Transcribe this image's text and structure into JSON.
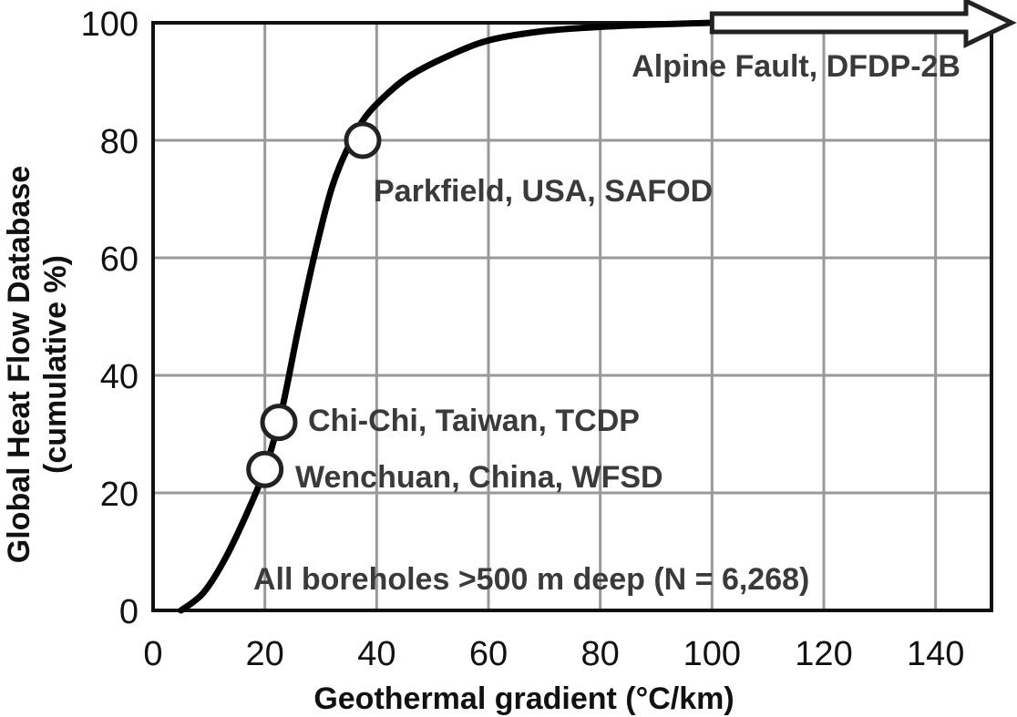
{
  "chart_data": {
    "type": "line",
    "title": "",
    "xlabel": "Geothermal gradient (°C/km)",
    "ylabel_line1": "Global Heat Flow Database",
    "ylabel_line2": "(cumulative %)",
    "xlim": [
      0,
      150
    ],
    "ylim": [
      0,
      100
    ],
    "xticks": [
      0,
      20,
      40,
      60,
      80,
      100,
      120,
      140
    ],
    "yticks": [
      0,
      20,
      40,
      60,
      80,
      100
    ],
    "grid": true,
    "series": [
      {
        "x": [
          5,
          9,
          13,
          17,
          20,
          23,
          26,
          29,
          32,
          35,
          38,
          42,
          46,
          52,
          60,
          70,
          80,
          90,
          100
        ],
        "y": [
          0,
          3,
          9,
          17,
          24,
          34,
          48,
          61,
          72,
          79,
          84,
          88,
          91,
          94,
          97,
          98.6,
          99.3,
          99.7,
          100
        ]
      }
    ],
    "points": [
      {
        "label": "Parkfield, USA, SAFOD",
        "x": 37.5,
        "y": 80
      },
      {
        "label": "Chi-Chi, Taiwan, TCDP",
        "x": 22.5,
        "y": 32
      },
      {
        "label": "Wenchuan, China, WFSD",
        "x": 20,
        "y": 24
      }
    ],
    "arrow": {
      "label": "Alpine Fault, DFDP-2B",
      "x_start": 100,
      "y": 100
    },
    "annotations": [
      "All boreholes >500 m deep (N = 6,268)"
    ]
  }
}
